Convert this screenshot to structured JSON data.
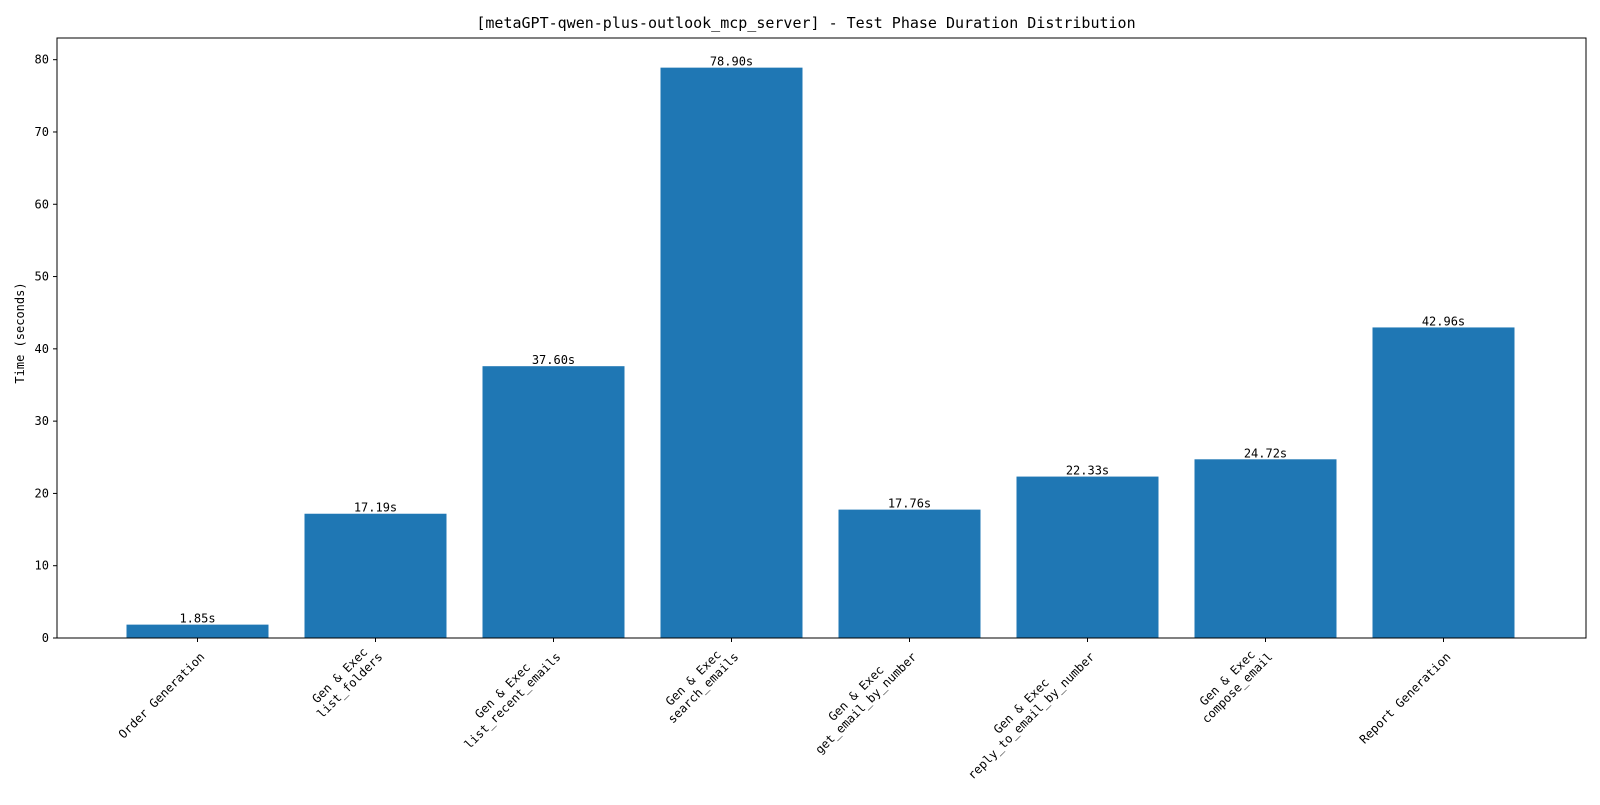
{
  "chart_data": {
    "type": "bar",
    "title": "[metaGPT-qwen-plus-outlook_mcp_server] - Test Phase Duration Distribution",
    "xlabel": "",
    "ylabel": "Time (seconds)",
    "ylim": [
      0,
      83
    ],
    "yticks": [
      0,
      10,
      20,
      30,
      40,
      50,
      60,
      70,
      80
    ],
    "grid": false,
    "bar_color": "#1f77b4",
    "categories": [
      "Order Generation",
      "Gen & Exec\nlist_folders",
      "Gen & Exec\nlist_recent_emails",
      "Gen & Exec\nsearch_emails",
      "Gen & Exec\nget_email_by_number",
      "Gen & Exec\nreply_to_email_by_number",
      "Gen & Exec\ncompose_email",
      "Report Generation"
    ],
    "values": [
      1.85,
      17.19,
      37.6,
      78.9,
      17.76,
      22.33,
      24.72,
      42.96
    ],
    "value_labels": [
      "1.85s",
      "17.19s",
      "37.60s",
      "78.90s",
      "17.76s",
      "22.33s",
      "24.72s",
      "42.96s"
    ]
  }
}
